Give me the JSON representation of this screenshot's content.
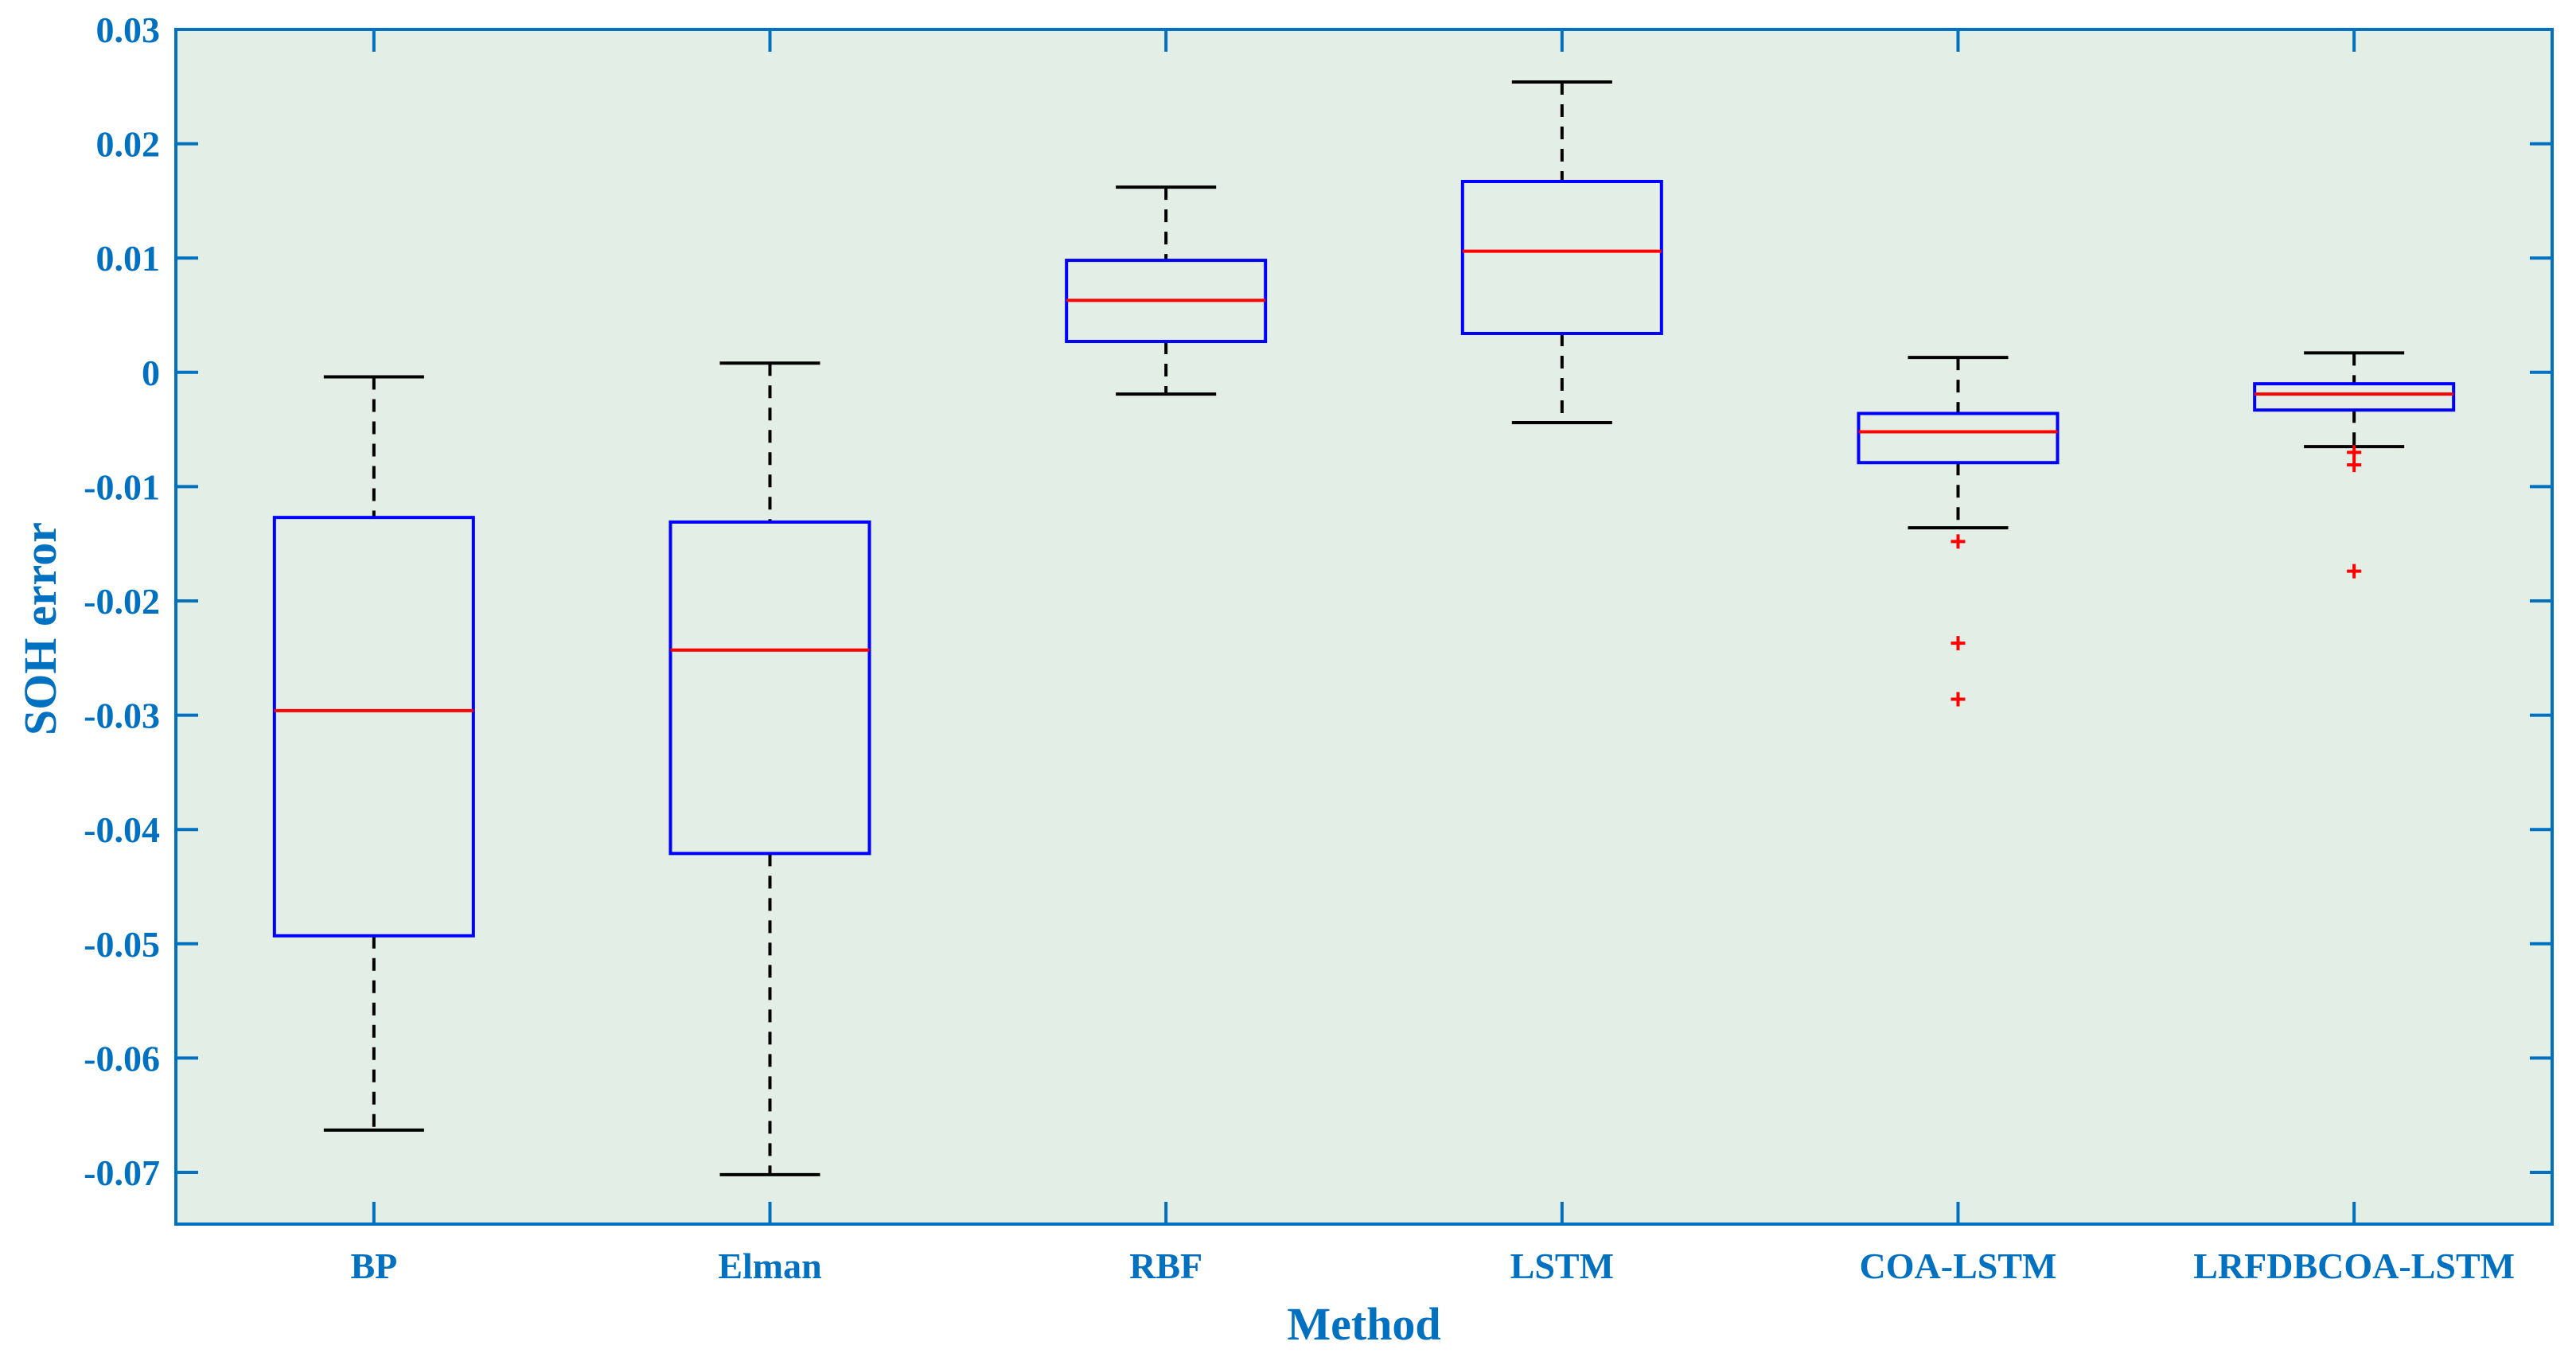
{
  "chart_data": {
    "type": "boxplot",
    "title": "",
    "xlabel": "Method",
    "ylabel": "SOH error",
    "ylim": [
      -0.075,
      0.03
    ],
    "yticks": [
      0.03,
      0.02,
      0.01,
      0,
      -0.01,
      -0.02,
      -0.03,
      -0.04,
      -0.05,
      -0.06,
      -0.07
    ],
    "ytick_labels": [
      "0.03",
      "0.02",
      "0.01",
      "0",
      "-0.01",
      "-0.02",
      "-0.03",
      "-0.04",
      "-0.05",
      "-0.06",
      "-0.07"
    ],
    "categories": [
      "BP",
      "Elman",
      "RBF",
      "LSTM",
      "COA-LSTM",
      "LRFDBCOA-LSTM"
    ],
    "boxes": [
      {
        "name": "BP",
        "whisker_low": -0.0663,
        "q1": -0.0493,
        "median": -0.0296,
        "q3": -0.0127,
        "whisker_high": -0.0004,
        "outliers": []
      },
      {
        "name": "Elman",
        "whisker_low": -0.0702,
        "q1": -0.0421,
        "median": -0.0243,
        "q3": -0.0131,
        "whisker_high": 0.0008,
        "outliers": []
      },
      {
        "name": "RBF",
        "whisker_low": -0.0019,
        "q1": 0.0027,
        "median": 0.0063,
        "q3": 0.0098,
        "whisker_high": 0.0162,
        "outliers": []
      },
      {
        "name": "LSTM",
        "whisker_low": -0.0044,
        "q1": 0.0034,
        "median": 0.0106,
        "q3": 0.0167,
        "whisker_high": 0.0254,
        "outliers": []
      },
      {
        "name": "COA-LSTM",
        "whisker_low": -0.0136,
        "q1": -0.0079,
        "median": -0.0052,
        "q3": -0.0036,
        "whisker_high": 0.0013,
        "outliers": [
          -0.0148,
          -0.0237,
          -0.0286
        ]
      },
      {
        "name": "LRFDBCOA-LSTM",
        "whisker_low": -0.0065,
        "q1": -0.0033,
        "median": -0.0019,
        "q3": -0.001,
        "whisker_high": 0.0017,
        "outliers": [
          -0.007,
          -0.0081,
          -0.0174
        ]
      }
    ],
    "colors": {
      "plot_background": "#e3eee6",
      "axis": "#0070c0",
      "box": "#0000ff",
      "median": "#ff0000",
      "whisker": "#000000",
      "outlier": "#ff0000",
      "text": "#0070c0"
    },
    "grid": false
  }
}
